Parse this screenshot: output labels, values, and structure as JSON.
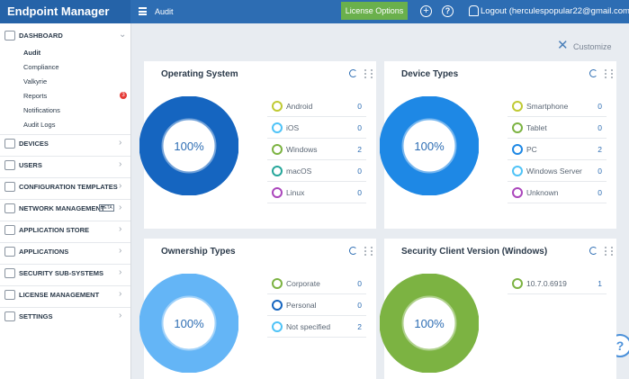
{
  "header": {
    "brand": "Endpoint Manager",
    "page": "Audit",
    "license_button": "License Options",
    "logout": "Logout (herculespopular22@gmail.com)"
  },
  "sidebar": {
    "sections": [
      {
        "label": "DASHBOARD",
        "children": [
          {
            "label": "Audit"
          },
          {
            "label": "Compliance"
          },
          {
            "label": "Valkyrie"
          },
          {
            "label": "Reports",
            "badge": 3
          },
          {
            "label": "Notifications"
          },
          {
            "label": "Audit Logs"
          }
        ]
      },
      {
        "label": "DEVICES"
      },
      {
        "label": "USERS"
      },
      {
        "label": "CONFIGURATION TEMPLATES"
      },
      {
        "label": "NETWORK MANAGEMENT",
        "tag": "BETA"
      },
      {
        "label": "APPLICATION STORE"
      },
      {
        "label": "APPLICATIONS"
      },
      {
        "label": "SECURITY SUB-SYSTEMS"
      },
      {
        "label": "LICENSE MANAGEMENT"
      },
      {
        "label": "SETTINGS"
      }
    ]
  },
  "toolbar": {
    "customize": "Customize"
  },
  "widgets": [
    {
      "title": "Operating System",
      "center": "100%",
      "color": "#1565c0",
      "rows": [
        {
          "label": "Android",
          "count": 0,
          "color": "#c0ca33"
        },
        {
          "label": "iOS",
          "count": 0,
          "color": "#4fc3f7"
        },
        {
          "label": "Windows",
          "count": 2,
          "color": "#7cb342"
        },
        {
          "label": "macOS",
          "count": 0,
          "color": "#26a69a"
        },
        {
          "label": "Linux",
          "count": 0,
          "color": "#ab47bc"
        }
      ]
    },
    {
      "title": "Device Types",
      "center": "100%",
      "color": "#1e88e5",
      "rows": [
        {
          "label": "Smartphone",
          "count": 0,
          "color": "#c0ca33"
        },
        {
          "label": "Tablet",
          "count": 0,
          "color": "#7cb342"
        },
        {
          "label": "PC",
          "count": 2,
          "color": "#1e88e5"
        },
        {
          "label": "Windows Server",
          "count": 0,
          "color": "#4fc3f7"
        },
        {
          "label": "Unknown",
          "count": 0,
          "color": "#ab47bc"
        }
      ]
    },
    {
      "title": "Ownership Types",
      "center": "100%",
      "color": "#64b5f6",
      "rows": [
        {
          "label": "Corporate",
          "count": 0,
          "color": "#7cb342"
        },
        {
          "label": "Personal",
          "count": 0,
          "color": "#1565c0"
        },
        {
          "label": "Not specified",
          "count": 2,
          "color": "#4fc3f7"
        }
      ]
    },
    {
      "title": "Security Client Version (Windows)",
      "center": "100%",
      "color": "#7cb342",
      "rows": [
        {
          "label": "10.7.0.6919",
          "count": 1,
          "color": "#7cb342"
        }
      ]
    }
  ]
}
